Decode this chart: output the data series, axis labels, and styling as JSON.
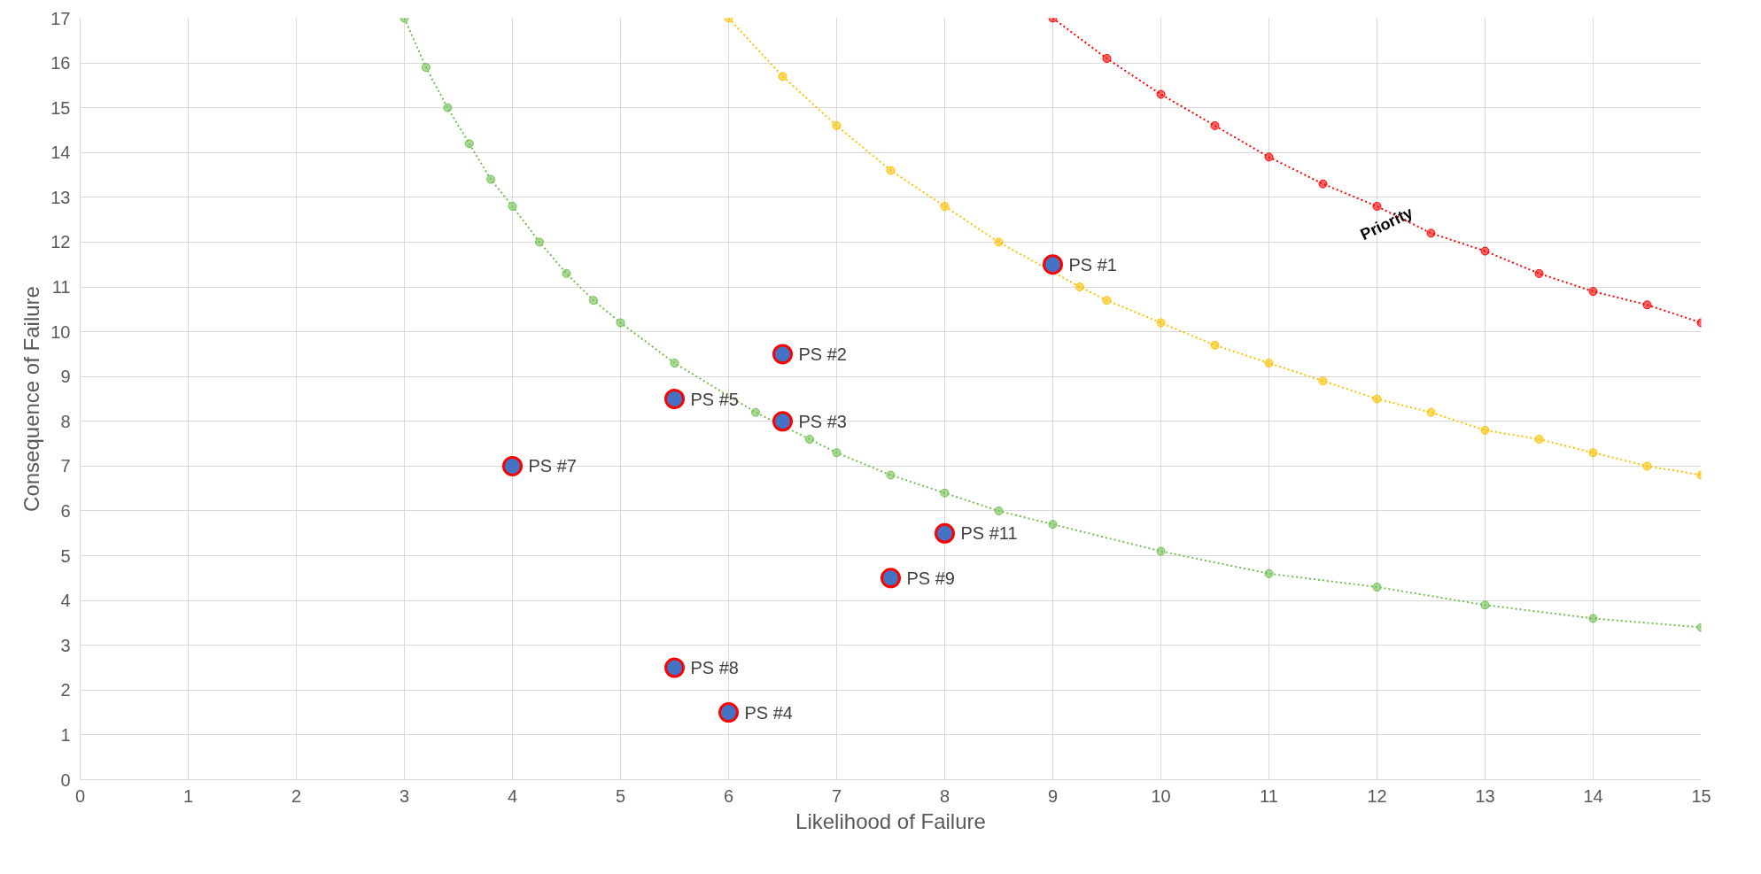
{
  "chart_data": {
    "type": "scatter",
    "xlabel": "Likelihood of Failure",
    "ylabel": "Consequence of Failure",
    "xlim": [
      0,
      15
    ],
    "ylim": [
      0,
      17
    ],
    "xticks": [
      0,
      1,
      2,
      3,
      4,
      5,
      6,
      7,
      8,
      9,
      10,
      11,
      12,
      13,
      14,
      15
    ],
    "yticks": [
      0,
      1,
      2,
      3,
      4,
      5,
      6,
      7,
      8,
      9,
      10,
      11,
      12,
      13,
      14,
      15,
      16,
      17
    ],
    "grid": true,
    "series": [
      {
        "type": "line",
        "marker": "circle",
        "line_style": "dotted",
        "color": "#70c050",
        "x": [
          3,
          3.2,
          3.4,
          3.6,
          3.8,
          4,
          4.25,
          4.5,
          4.75,
          5,
          5.5,
          6.25,
          6.75,
          7,
          7.5,
          8,
          8.5,
          9,
          10,
          11,
          12,
          13,
          14,
          15
        ],
        "values": [
          17,
          15.9,
          15,
          14.2,
          13.4,
          12.8,
          12,
          11.3,
          10.7,
          10.2,
          9.3,
          8.2,
          7.6,
          7.3,
          6.8,
          6.4,
          6,
          5.7,
          5.1,
          4.6,
          4.3,
          3.9,
          3.6,
          3.4
        ]
      },
      {
        "type": "line",
        "marker": "circle",
        "line_style": "dotted",
        "color": "#ffc000",
        "x": [
          6,
          6.5,
          7,
          7.5,
          8,
          8.5,
          9.25,
          9.5,
          10,
          10.5,
          11,
          11.5,
          12,
          12.5,
          13,
          13.5,
          14,
          14.5,
          15
        ],
        "values": [
          17,
          15.7,
          14.6,
          13.6,
          12.8,
          12,
          11,
          10.7,
          10.2,
          9.7,
          9.3,
          8.9,
          8.5,
          8.2,
          7.8,
          7.6,
          7.3,
          7,
          6.8
        ]
      },
      {
        "type": "line",
        "marker": "circle",
        "line_style": "dotted",
        "color": "#ff0000",
        "x": [
          9,
          9.5,
          10,
          10.5,
          11,
          11.5,
          12,
          12.5,
          13,
          13.5,
          14,
          14.5,
          15
        ],
        "values": [
          17,
          16.1,
          15.3,
          14.6,
          13.9,
          13.3,
          12.8,
          12.2,
          11.8,
          11.3,
          10.9,
          10.6,
          10.2
        ]
      },
      {
        "marker": "circle",
        "color": "#4472c4",
        "x": [
          9,
          6.5,
          6.5,
          6,
          5.5,
          4,
          5.5,
          7.5,
          8
        ],
        "values": [
          11.5,
          9.5,
          8,
          1.5,
          8.5,
          7,
          2.5,
          4.5,
          5.5
        ]
      }
    ],
    "annotations": [
      {
        "text": "PS #1",
        "x": 9,
        "y": 11.5
      },
      {
        "text": "PS #2",
        "x": 6.5,
        "y": 9.5
      },
      {
        "text": "PS #3",
        "x": 6.5,
        "y": 8
      },
      {
        "text": "PS #4",
        "x": 6,
        "y": 1.5
      },
      {
        "text": "PS #5",
        "x": 5.5,
        "y": 8.5
      },
      {
        "text": "PS #7",
        "x": 4,
        "y": 7
      },
      {
        "text": "PS #8",
        "x": 5.5,
        "y": 2.5
      },
      {
        "text": "PS #9",
        "x": 7.5,
        "y": 4.5
      },
      {
        "text": "PS #11",
        "x": 8,
        "y": 5.5
      },
      "Priority"
    ]
  }
}
